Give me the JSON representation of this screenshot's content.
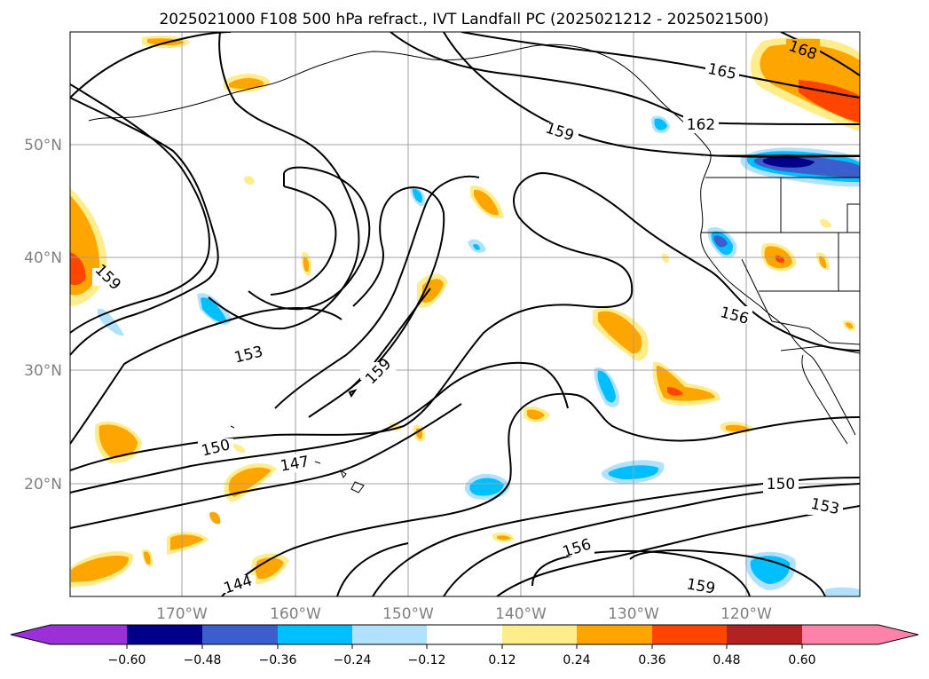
{
  "title": "2025021000 F108 500 hPa refract., IVT Landfall PC (2025021212 - 2025021500)",
  "latitude_labels": [
    "50°N",
    "40°N",
    "30°N",
    "20°N"
  ],
  "longitude_labels": [
    "170°W",
    "160°W",
    "150°W",
    "140°W",
    "130°W",
    "120°W"
  ],
  "colorbar": {
    "tick_labels": [
      "−0.60",
      "−0.48",
      "−0.36",
      "−0.24",
      "−0.12",
      "0.12",
      "0.24",
      "0.36",
      "0.48",
      "0.60"
    ],
    "colors": [
      "#9b30d9",
      "#00008b",
      "#3a5fcd",
      "#00bfff",
      "#b0e2ff",
      "#ffffff",
      "#ffec8b",
      "#ffa500",
      "#ff4500",
      "#b22222",
      "#ff82ab"
    ]
  },
  "contour_labels": [
    "168",
    "165",
    "162",
    "159",
    "159",
    "159",
    "156",
    "156",
    "153",
    "153",
    "150",
    "150",
    "147",
    "159",
    "144"
  ],
  "colors": {
    "land_border": "#000000",
    "grid": "#a0a0a0",
    "orange": "#ffa500",
    "yellow": "#ffec8b",
    "red_orange": "#ff4500",
    "sky": "#00bfff",
    "light_blue": "#b0e2ff",
    "navy": "#00008b",
    "royal": "#3a5fcd"
  }
}
